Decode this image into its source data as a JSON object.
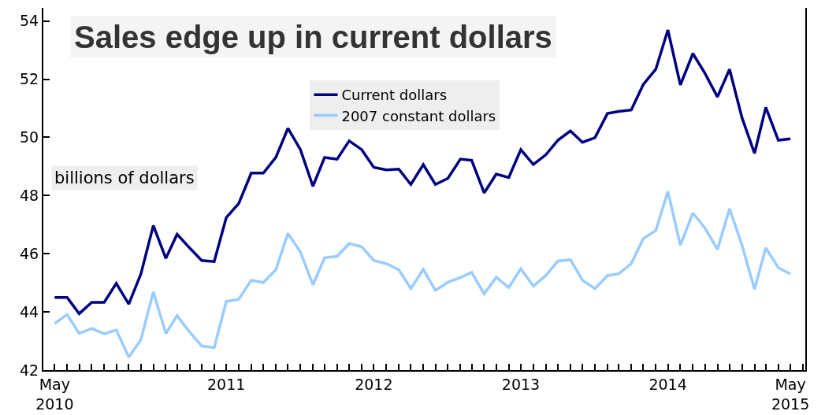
{
  "chart_data": {
    "type": "line",
    "title": "Sales edge up in current dollars",
    "ylabel": "billions of dollars",
    "x": [
      "2010-05",
      "2010-06",
      "2010-07",
      "2010-08",
      "2010-09",
      "2010-10",
      "2010-11",
      "2010-12",
      "2011-01",
      "2011-02",
      "2011-03",
      "2011-04",
      "2011-05",
      "2011-06",
      "2011-07",
      "2011-08",
      "2011-09",
      "2011-10",
      "2011-11",
      "2011-12",
      "2012-01",
      "2012-02",
      "2012-03",
      "2012-04",
      "2012-05",
      "2012-06",
      "2012-07",
      "2012-08",
      "2012-09",
      "2012-10",
      "2012-11",
      "2012-12",
      "2013-01",
      "2013-02",
      "2013-03",
      "2013-04",
      "2013-05",
      "2013-06",
      "2013-07",
      "2013-08",
      "2013-09",
      "2013-10",
      "2013-11",
      "2013-12",
      "2014-01",
      "2014-02",
      "2014-03",
      "2014-04",
      "2014-05",
      "2014-06",
      "2014-07",
      "2014-08",
      "2014-09",
      "2014-10",
      "2014-11",
      "2014-12",
      "2015-01",
      "2015-02",
      "2015-03",
      "2015-04",
      "2015-05"
    ],
    "series": [
      {
        "name": "Current dollars",
        "color": "#000080",
        "values": [
          44.5,
          44.5,
          43.94,
          44.33,
          44.33,
          44.98,
          44.27,
          45.3,
          46.97,
          45.84,
          46.67,
          46.2,
          45.77,
          45.73,
          47.24,
          47.73,
          48.77,
          48.77,
          49.31,
          50.31,
          49.58,
          48.32,
          49.31,
          49.25,
          49.88,
          49.58,
          48.97,
          48.88,
          48.91,
          48.38,
          49.06,
          48.38,
          48.59,
          49.25,
          49.21,
          48.09,
          48.74,
          48.62,
          49.58,
          49.07,
          49.4,
          49.9,
          50.22,
          49.83,
          49.99,
          50.82,
          50.89,
          50.94,
          51.82,
          52.34,
          53.69,
          51.8,
          52.88,
          52.2,
          51.39,
          52.34,
          50.67,
          49.45,
          51.03,
          49.9,
          49.95
        ]
      },
      {
        "name": "2007 constant dollars",
        "color": "#99ccff",
        "values": [
          43.6,
          43.91,
          43.26,
          43.43,
          43.25,
          43.38,
          42.45,
          43.04,
          44.69,
          43.26,
          43.87,
          43.31,
          42.83,
          42.77,
          44.36,
          44.44,
          45.09,
          45.01,
          45.45,
          46.7,
          46.06,
          44.93,
          45.86,
          45.91,
          46.35,
          46.24,
          45.77,
          45.66,
          45.45,
          44.8,
          45.46,
          44.74,
          45.02,
          45.18,
          45.36,
          44.62,
          45.19,
          44.84,
          45.48,
          44.89,
          45.25,
          45.75,
          45.79,
          45.09,
          44.8,
          45.25,
          45.31,
          45.66,
          46.52,
          46.8,
          48.14,
          46.29,
          47.4,
          46.88,
          46.15,
          47.55,
          46.29,
          44.78,
          46.2,
          45.52,
          45.3
        ]
      }
    ],
    "xlim": [
      "2010-04-03",
      "2015-06-07"
    ],
    "xticks": [
      {
        "value": "2010-05",
        "label": "May\n2010"
      },
      {
        "value": "2011-01",
        "label": null
      },
      {
        "value": "2011-07",
        "label": "2011"
      },
      {
        "value": "2012-01",
        "label": null
      },
      {
        "value": "2012-07",
        "label": "2012"
      },
      {
        "value": "2013-01",
        "label": null
      },
      {
        "value": "2013-07",
        "label": "2013"
      },
      {
        "value": "2014-01",
        "label": null
      },
      {
        "value": "2014-07",
        "label": "2014"
      },
      {
        "value": "2015-01",
        "label": null
      },
      {
        "value": "2015-05",
        "label": "May\n2015"
      }
    ],
    "ylim": [
      42,
      54.45
    ],
    "yticks": [
      42,
      44,
      46,
      48,
      50,
      52,
      54
    ],
    "grid": false,
    "legend": "top",
    "marker": "none",
    "line_style": "solid"
  }
}
